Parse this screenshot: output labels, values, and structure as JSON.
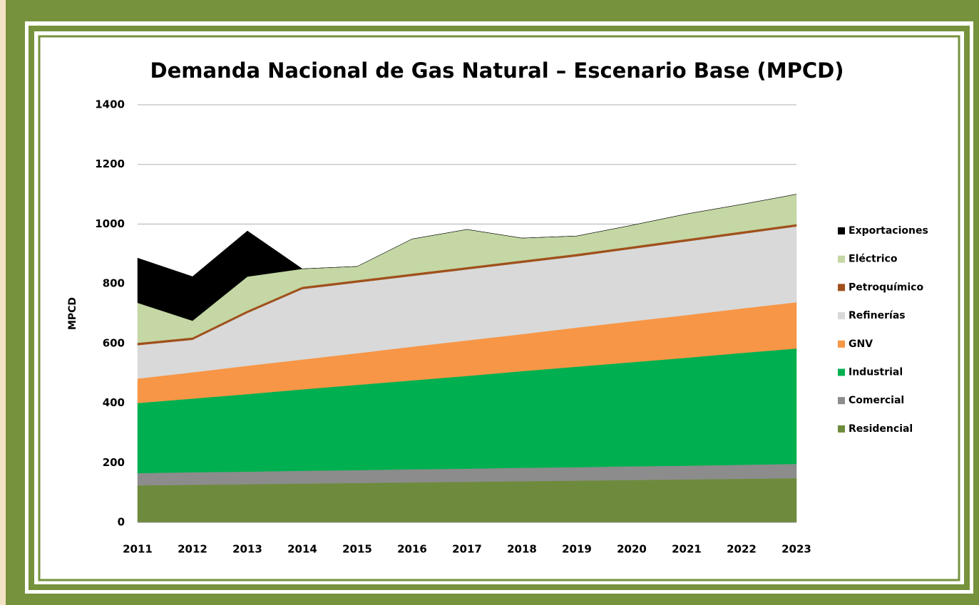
{
  "chart_data": {
    "type": "stacked_area",
    "title": "Demanda Nacional de Gas Natural – Escenario Base (MPCD)",
    "y_label": "MPCD",
    "categories": [
      "2011",
      "2012",
      "2013",
      "2014",
      "2015",
      "2016",
      "2017",
      "2018",
      "2019",
      "2020",
      "2021",
      "2022",
      "2023"
    ],
    "series": [
      {
        "name": "Residencial",
        "color": "#6e8b3d",
        "values": [
          124,
          126,
          128,
          130,
          132,
          134,
          136,
          138,
          140,
          142,
          144,
          146,
          148
        ]
      },
      {
        "name": "Comercial",
        "color": "#8c8c8c",
        "values": [
          41,
          42,
          42,
          43,
          43,
          44,
          44,
          45,
          45,
          46,
          46,
          47,
          48
        ]
      },
      {
        "name": "Industrial",
        "color": "#00b050",
        "values": [
          235,
          247,
          260,
          273,
          286,
          298,
          311,
          324,
          337,
          349,
          362,
          375,
          387
        ]
      },
      {
        "name": "GNV",
        "color": "#f79646",
        "values": [
          82,
          88,
          95,
          100,
          106,
          113,
          119,
          124,
          131,
          137,
          143,
          149,
          155
        ]
      },
      {
        "name": "Refinerías",
        "color": "#d9d9d9",
        "values": [
          112,
          109,
          177,
          236,
          237,
          237,
          238,
          239,
          239,
          243,
          247,
          250,
          254
        ]
      },
      {
        "name": "Petroquímico",
        "color": "#a0501c",
        "values": [
          8,
          8,
          8,
          8,
          8,
          8,
          8,
          8,
          8,
          8,
          8,
          8,
          8
        ]
      },
      {
        "name": "Eléctrico",
        "color": "#c4d7a4",
        "values": [
          134,
          56,
          114,
          60,
          46,
          116,
          126,
          75,
          60,
          71,
          84,
          91,
          100
        ]
      },
      {
        "name": "Exportaciones",
        "color": "#000000",
        "values": [
          150,
          148,
          153,
          0,
          0,
          0,
          0,
          0,
          0,
          0,
          0,
          0,
          0
        ]
      }
    ],
    "ylim": [
      0,
      1400
    ],
    "yticks": [
      0,
      200,
      400,
      600,
      800,
      1000,
      1200,
      1400
    ],
    "grid": true,
    "legend": "right"
  }
}
